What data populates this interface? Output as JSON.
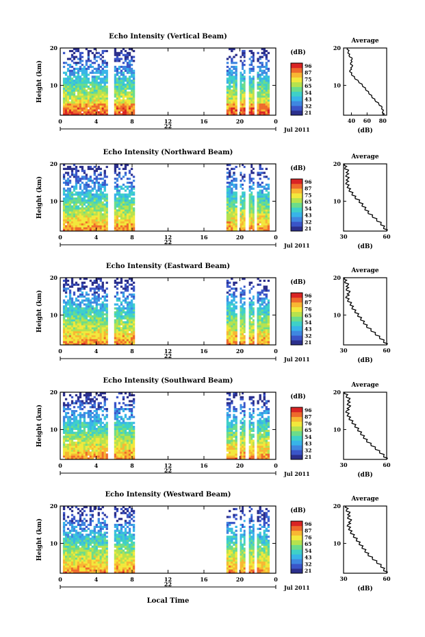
{
  "figure": {
    "xlabel": "Local Time",
    "date_label": "Jul 2011",
    "day_label": "22",
    "cbar_unit": "(dB)",
    "avg_title": "Average",
    "avg_xlabel": "(dB)",
    "ylabel": "Height (km)"
  },
  "chart_data": [
    {
      "type": "heatmap",
      "title": "Echo Intensity (Vertical Beam)",
      "xlabel": "",
      "ylabel": "Height (km)",
      "xlim": [
        0,
        24
      ],
      "ylim": [
        2,
        20
      ],
      "x_ticks": [
        "0",
        "4",
        "8",
        "12",
        "16",
        "20",
        "0"
      ],
      "y_ticks": [
        "20",
        "10"
      ],
      "data_spans_hours": [
        [
          0.3,
          5.3
        ],
        [
          6.0,
          8.3
        ],
        [
          18.5,
          19.7
        ],
        [
          20.0,
          20.6
        ],
        [
          21.0,
          21.6
        ],
        [
          21.9,
          23.3
        ]
      ],
      "colorbar": {
        "unit": "(dB)",
        "ticks": [
          "96",
          "87",
          "75",
          "65",
          "54",
          "43",
          "32",
          "21"
        ]
      },
      "average_profile": {
        "title": "Average",
        "xlabel": "(dB)",
        "x_ticks": [
          "40",
          "60",
          "80"
        ],
        "y_ticks": [
          "20",
          "10"
        ],
        "xlim": [
          30,
          85
        ],
        "height_km": [
          2,
          3,
          4,
          5,
          6,
          7,
          8,
          9,
          10,
          11,
          12,
          13,
          14,
          15,
          16,
          17,
          18,
          19,
          20
        ],
        "db": [
          81,
          80,
          79,
          75,
          70,
          66,
          62,
          58,
          54,
          49,
          44,
          40,
          38,
          41,
          39,
          41,
          37,
          36,
          35
        ]
      }
    },
    {
      "type": "heatmap",
      "title": "Echo Intensity (Northward Beam)",
      "xlabel": "",
      "ylabel": "Height (km)",
      "xlim": [
        0,
        24
      ],
      "ylim": [
        2,
        20
      ],
      "x_ticks": [
        "0",
        "4",
        "8",
        "12",
        "16",
        "20",
        "0"
      ],
      "y_ticks": [
        "20",
        "10"
      ],
      "data_spans_hours": [
        [
          0.3,
          5.3
        ],
        [
          6.0,
          8.3
        ],
        [
          18.5,
          19.7
        ],
        [
          20.0,
          20.6
        ],
        [
          21.0,
          21.6
        ],
        [
          21.9,
          23.3
        ]
      ],
      "colorbar": {
        "unit": "(dB)",
        "ticks": [
          "96",
          "87",
          "75",
          "65",
          "54",
          "43",
          "32",
          "21"
        ]
      },
      "average_profile": {
        "title": "Average",
        "xlabel": "(dB)",
        "x_ticks": [
          "30",
          "60"
        ],
        "y_ticks": [
          "20",
          "10"
        ],
        "xlim": [
          30,
          60
        ],
        "height_km": [
          2,
          3,
          4,
          5,
          6,
          7,
          8,
          9,
          10,
          11,
          12,
          13,
          14,
          15,
          16,
          17,
          18,
          19,
          20
        ],
        "db": [
          60,
          58,
          56,
          53,
          50,
          47,
          45,
          43,
          41,
          38,
          36,
          34,
          33,
          32,
          33,
          32,
          33,
          31,
          31
        ]
      }
    },
    {
      "type": "heatmap",
      "title": "Echo Intensity (Eastward Beam)",
      "xlabel": "",
      "ylabel": "Height (km)",
      "xlim": [
        0,
        24
      ],
      "ylim": [
        2,
        20
      ],
      "x_ticks": [
        "0",
        "4",
        "8",
        "12",
        "16",
        "20",
        "0"
      ],
      "y_ticks": [
        "20",
        "10"
      ],
      "data_spans_hours": [
        [
          0.3,
          5.3
        ],
        [
          6.0,
          8.3
        ],
        [
          18.5,
          19.7
        ],
        [
          20.0,
          20.6
        ],
        [
          21.0,
          21.6
        ],
        [
          21.9,
          23.3
        ]
      ],
      "colorbar": {
        "unit": "(dB)",
        "ticks": [
          "96",
          "87",
          "76",
          "65",
          "54",
          "43",
          "32",
          "21"
        ]
      },
      "average_profile": {
        "title": "Average",
        "xlabel": "(dB)",
        "x_ticks": [
          "30",
          "60"
        ],
        "y_ticks": [
          "20",
          "10"
        ],
        "xlim": [
          30,
          60
        ],
        "height_km": [
          2,
          3,
          4,
          5,
          6,
          7,
          8,
          9,
          10,
          11,
          12,
          13,
          14,
          15,
          16,
          17,
          18,
          19,
          20
        ],
        "db": [
          60,
          58,
          55,
          52,
          49,
          46,
          44,
          42,
          40,
          38,
          36,
          35,
          33,
          32,
          34,
          32,
          33,
          31,
          31
        ]
      }
    },
    {
      "type": "heatmap",
      "title": "Echo Intensity (Southward Beam)",
      "xlabel": "",
      "ylabel": "Height (km)",
      "xlim": [
        0,
        24
      ],
      "ylim": [
        2,
        20
      ],
      "x_ticks": [
        "0",
        "4",
        "8",
        "12",
        "16",
        "20",
        "0"
      ],
      "y_ticks": [
        "20",
        "10"
      ],
      "data_spans_hours": [
        [
          0.3,
          5.3
        ],
        [
          6.0,
          8.3
        ],
        [
          18.5,
          19.7
        ],
        [
          20.0,
          20.6
        ],
        [
          21.0,
          21.6
        ],
        [
          21.9,
          23.3
        ]
      ],
      "colorbar": {
        "unit": "(dB)",
        "ticks": [
          "96",
          "87",
          "76",
          "65",
          "54",
          "43",
          "32",
          "21"
        ]
      },
      "average_profile": {
        "title": "Average",
        "xlabel": "(dB)",
        "x_ticks": [
          "30",
          "60"
        ],
        "y_ticks": [
          "20",
          "10"
        ],
        "xlim": [
          30,
          60
        ],
        "height_km": [
          2,
          3,
          4,
          5,
          6,
          7,
          8,
          9,
          10,
          11,
          12,
          13,
          14,
          15,
          16,
          17,
          18,
          19,
          20
        ],
        "db": [
          60,
          58,
          55,
          52,
          49,
          46,
          44,
          42,
          40,
          38,
          36,
          34,
          33,
          32,
          34,
          33,
          34,
          32,
          31
        ]
      }
    },
    {
      "type": "heatmap",
      "title": "Echo Intensity (Westward Beam)",
      "xlabel": "Local Time",
      "ylabel": "Height (km)",
      "xlim": [
        0,
        24
      ],
      "ylim": [
        2,
        20
      ],
      "x_ticks": [
        "0",
        "4",
        "8",
        "12",
        "16",
        "20",
        "0"
      ],
      "y_ticks": [
        "20",
        "10"
      ],
      "data_spans_hours": [
        [
          0.3,
          5.3
        ],
        [
          6.0,
          8.3
        ],
        [
          18.5,
          19.7
        ],
        [
          20.0,
          20.6
        ],
        [
          21.0,
          21.6
        ],
        [
          21.9,
          23.3
        ]
      ],
      "colorbar": {
        "unit": "(dB)",
        "ticks": [
          "96",
          "87",
          "76",
          "65",
          "54",
          "43",
          "32",
          "21"
        ]
      },
      "average_profile": {
        "title": "Average",
        "xlabel": "(dB)",
        "x_ticks": [
          "30",
          "60"
        ],
        "y_ticks": [
          "20",
          "10"
        ],
        "xlim": [
          30,
          60
        ],
        "height_km": [
          2,
          3,
          4,
          5,
          6,
          7,
          8,
          9,
          10,
          11,
          12,
          13,
          14,
          15,
          16,
          17,
          18,
          19,
          20
        ],
        "db": [
          60,
          58,
          56,
          53,
          50,
          47,
          45,
          43,
          41,
          39,
          37,
          35,
          34,
          33,
          35,
          33,
          34,
          32,
          32
        ]
      }
    }
  ],
  "colors": {
    "colormap": [
      "#2b2f8c",
      "#3a55c8",
      "#3f87e0",
      "#38b4e8",
      "#3fd0c8",
      "#6cdc8a",
      "#b6e24e",
      "#f2e83c",
      "#f8b733",
      "#ee6a2c",
      "#d92424"
    ],
    "axis": "#000000",
    "profile_line": "#000000"
  }
}
